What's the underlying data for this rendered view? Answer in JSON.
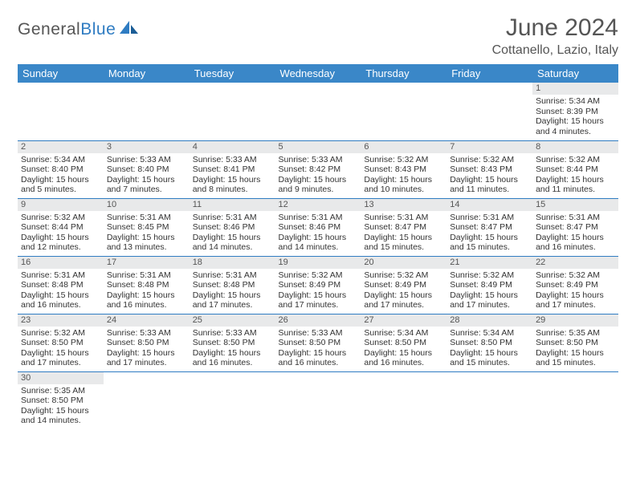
{
  "brand": {
    "text1": "General",
    "text2": "Blue"
  },
  "title": "June 2024",
  "location": "Cottanello, Lazio, Italy",
  "colors": {
    "header_bg": "#3a87c8",
    "header_fg": "#ffffff",
    "divider": "#2f7cc2",
    "daynum_bg": "#e8e9ea",
    "body_text": "#333333"
  },
  "day_headers": [
    "Sunday",
    "Monday",
    "Tuesday",
    "Wednesday",
    "Thursday",
    "Friday",
    "Saturday"
  ],
  "weeks": [
    [
      {
        "day": ""
      },
      {
        "day": ""
      },
      {
        "day": ""
      },
      {
        "day": ""
      },
      {
        "day": ""
      },
      {
        "day": ""
      },
      {
        "day": "1",
        "sunrise": "Sunrise: 5:34 AM",
        "sunset": "Sunset: 8:39 PM",
        "daylight1": "Daylight: 15 hours",
        "daylight2": "and 4 minutes."
      }
    ],
    [
      {
        "day": "2",
        "sunrise": "Sunrise: 5:34 AM",
        "sunset": "Sunset: 8:40 PM",
        "daylight1": "Daylight: 15 hours",
        "daylight2": "and 5 minutes."
      },
      {
        "day": "3",
        "sunrise": "Sunrise: 5:33 AM",
        "sunset": "Sunset: 8:40 PM",
        "daylight1": "Daylight: 15 hours",
        "daylight2": "and 7 minutes."
      },
      {
        "day": "4",
        "sunrise": "Sunrise: 5:33 AM",
        "sunset": "Sunset: 8:41 PM",
        "daylight1": "Daylight: 15 hours",
        "daylight2": "and 8 minutes."
      },
      {
        "day": "5",
        "sunrise": "Sunrise: 5:33 AM",
        "sunset": "Sunset: 8:42 PM",
        "daylight1": "Daylight: 15 hours",
        "daylight2": "and 9 minutes."
      },
      {
        "day": "6",
        "sunrise": "Sunrise: 5:32 AM",
        "sunset": "Sunset: 8:43 PM",
        "daylight1": "Daylight: 15 hours",
        "daylight2": "and 10 minutes."
      },
      {
        "day": "7",
        "sunrise": "Sunrise: 5:32 AM",
        "sunset": "Sunset: 8:43 PM",
        "daylight1": "Daylight: 15 hours",
        "daylight2": "and 11 minutes."
      },
      {
        "day": "8",
        "sunrise": "Sunrise: 5:32 AM",
        "sunset": "Sunset: 8:44 PM",
        "daylight1": "Daylight: 15 hours",
        "daylight2": "and 11 minutes."
      }
    ],
    [
      {
        "day": "9",
        "sunrise": "Sunrise: 5:32 AM",
        "sunset": "Sunset: 8:44 PM",
        "daylight1": "Daylight: 15 hours",
        "daylight2": "and 12 minutes."
      },
      {
        "day": "10",
        "sunrise": "Sunrise: 5:31 AM",
        "sunset": "Sunset: 8:45 PM",
        "daylight1": "Daylight: 15 hours",
        "daylight2": "and 13 minutes."
      },
      {
        "day": "11",
        "sunrise": "Sunrise: 5:31 AM",
        "sunset": "Sunset: 8:46 PM",
        "daylight1": "Daylight: 15 hours",
        "daylight2": "and 14 minutes."
      },
      {
        "day": "12",
        "sunrise": "Sunrise: 5:31 AM",
        "sunset": "Sunset: 8:46 PM",
        "daylight1": "Daylight: 15 hours",
        "daylight2": "and 14 minutes."
      },
      {
        "day": "13",
        "sunrise": "Sunrise: 5:31 AM",
        "sunset": "Sunset: 8:47 PM",
        "daylight1": "Daylight: 15 hours",
        "daylight2": "and 15 minutes."
      },
      {
        "day": "14",
        "sunrise": "Sunrise: 5:31 AM",
        "sunset": "Sunset: 8:47 PM",
        "daylight1": "Daylight: 15 hours",
        "daylight2": "and 15 minutes."
      },
      {
        "day": "15",
        "sunrise": "Sunrise: 5:31 AM",
        "sunset": "Sunset: 8:47 PM",
        "daylight1": "Daylight: 15 hours",
        "daylight2": "and 16 minutes."
      }
    ],
    [
      {
        "day": "16",
        "sunrise": "Sunrise: 5:31 AM",
        "sunset": "Sunset: 8:48 PM",
        "daylight1": "Daylight: 15 hours",
        "daylight2": "and 16 minutes."
      },
      {
        "day": "17",
        "sunrise": "Sunrise: 5:31 AM",
        "sunset": "Sunset: 8:48 PM",
        "daylight1": "Daylight: 15 hours",
        "daylight2": "and 16 minutes."
      },
      {
        "day": "18",
        "sunrise": "Sunrise: 5:31 AM",
        "sunset": "Sunset: 8:48 PM",
        "daylight1": "Daylight: 15 hours",
        "daylight2": "and 17 minutes."
      },
      {
        "day": "19",
        "sunrise": "Sunrise: 5:32 AM",
        "sunset": "Sunset: 8:49 PM",
        "daylight1": "Daylight: 15 hours",
        "daylight2": "and 17 minutes."
      },
      {
        "day": "20",
        "sunrise": "Sunrise: 5:32 AM",
        "sunset": "Sunset: 8:49 PM",
        "daylight1": "Daylight: 15 hours",
        "daylight2": "and 17 minutes."
      },
      {
        "day": "21",
        "sunrise": "Sunrise: 5:32 AM",
        "sunset": "Sunset: 8:49 PM",
        "daylight1": "Daylight: 15 hours",
        "daylight2": "and 17 minutes."
      },
      {
        "day": "22",
        "sunrise": "Sunrise: 5:32 AM",
        "sunset": "Sunset: 8:49 PM",
        "daylight1": "Daylight: 15 hours",
        "daylight2": "and 17 minutes."
      }
    ],
    [
      {
        "day": "23",
        "sunrise": "Sunrise: 5:32 AM",
        "sunset": "Sunset: 8:50 PM",
        "daylight1": "Daylight: 15 hours",
        "daylight2": "and 17 minutes."
      },
      {
        "day": "24",
        "sunrise": "Sunrise: 5:33 AM",
        "sunset": "Sunset: 8:50 PM",
        "daylight1": "Daylight: 15 hours",
        "daylight2": "and 17 minutes."
      },
      {
        "day": "25",
        "sunrise": "Sunrise: 5:33 AM",
        "sunset": "Sunset: 8:50 PM",
        "daylight1": "Daylight: 15 hours",
        "daylight2": "and 16 minutes."
      },
      {
        "day": "26",
        "sunrise": "Sunrise: 5:33 AM",
        "sunset": "Sunset: 8:50 PM",
        "daylight1": "Daylight: 15 hours",
        "daylight2": "and 16 minutes."
      },
      {
        "day": "27",
        "sunrise": "Sunrise: 5:34 AM",
        "sunset": "Sunset: 8:50 PM",
        "daylight1": "Daylight: 15 hours",
        "daylight2": "and 16 minutes."
      },
      {
        "day": "28",
        "sunrise": "Sunrise: 5:34 AM",
        "sunset": "Sunset: 8:50 PM",
        "daylight1": "Daylight: 15 hours",
        "daylight2": "and 15 minutes."
      },
      {
        "day": "29",
        "sunrise": "Sunrise: 5:35 AM",
        "sunset": "Sunset: 8:50 PM",
        "daylight1": "Daylight: 15 hours",
        "daylight2": "and 15 minutes."
      }
    ],
    [
      {
        "day": "30",
        "sunrise": "Sunrise: 5:35 AM",
        "sunset": "Sunset: 8:50 PM",
        "daylight1": "Daylight: 15 hours",
        "daylight2": "and 14 minutes."
      },
      {
        "day": ""
      },
      {
        "day": ""
      },
      {
        "day": ""
      },
      {
        "day": ""
      },
      {
        "day": ""
      },
      {
        "day": ""
      }
    ]
  ]
}
